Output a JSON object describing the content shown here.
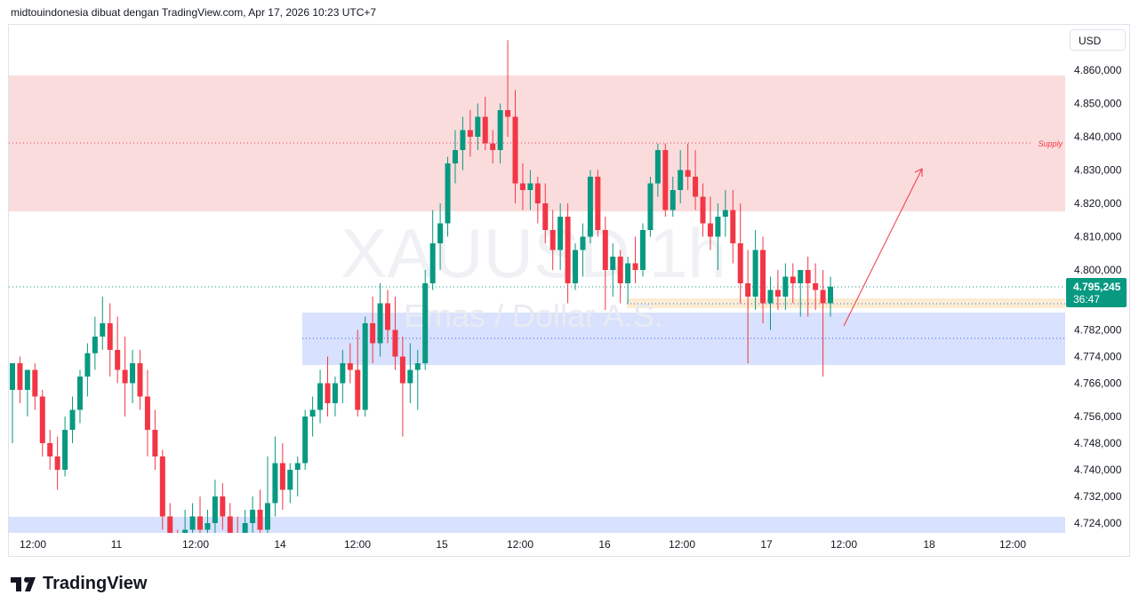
{
  "header": "midtouindonesia dibuat dengan TradingView.com, Apr 17, 2026 10:23 UTC+7",
  "currency": "USD",
  "watermark": {
    "symbol": "XAUUSD 1h",
    "name": "Emas / Dollar A.S."
  },
  "brand": "TradingView",
  "chart_data": {
    "type": "candlestick",
    "symbol": "XAUUSD",
    "interval": "1h",
    "colors": {
      "up": "#089981",
      "down": "#f23645",
      "supply": "#fbdcdd",
      "demand": "#d8e1fd",
      "pending": "#fdecd2"
    },
    "y_ticks": [
      "4.860,000",
      "4.850,000",
      "4.840,000",
      "4.830,000",
      "4.820,000",
      "4.810,000",
      "4.800,000",
      "4.782,000",
      "4.774,000",
      "4.766,000",
      "4.756,000",
      "4.748,000",
      "4.740,000",
      "4.732,000",
      "4.724,000"
    ],
    "y_tick_values": [
      4860,
      4850,
      4840,
      4830,
      4820,
      4810,
      4800,
      4782,
      4774,
      4766,
      4756,
      4748,
      4740,
      4732,
      4724
    ],
    "x_ticks": [
      "12:00",
      "11",
      "12:00",
      "14",
      "12:00",
      "15",
      "12:00",
      "16",
      "12:00",
      "17",
      "12:00",
      "18",
      "12:00"
    ],
    "last_price": "4.795,245",
    "countdown": "36:47",
    "last_price_value": 4795.245,
    "annotations": {
      "supply_label": "Supply",
      "supply_zone": [
        4818,
        4859
      ],
      "demand_zone": [
        4772,
        4788
      ],
      "demand_zone_low": [
        4719,
        4726
      ]
    },
    "candles": [
      [
        4764,
        4772,
        4748,
        4772
      ],
      [
        4772,
        4774,
        4760,
        4764
      ],
      [
        4764,
        4770,
        4756,
        4770
      ],
      [
        4770,
        4772,
        4758,
        4762
      ],
      [
        4762,
        4764,
        4744,
        4748
      ],
      [
        4748,
        4752,
        4740,
        4744
      ],
      [
        4744,
        4750,
        4734,
        4740
      ],
      [
        4740,
        4756,
        4738,
        4752
      ],
      [
        4752,
        4762,
        4748,
        4758
      ],
      [
        4758,
        4770,
        4754,
        4768
      ],
      [
        4768,
        4778,
        4762,
        4775
      ],
      [
        4775,
        4786,
        4770,
        4780
      ],
      [
        4780,
        4792,
        4776,
        4784
      ],
      [
        4784,
        4790,
        4768,
        4776
      ],
      [
        4776,
        4786,
        4766,
        4770
      ],
      [
        4770,
        4780,
        4756,
        4766
      ],
      [
        4766,
        4776,
        4760,
        4772
      ],
      [
        4772,
        4776,
        4758,
        4762
      ],
      [
        4762,
        4770,
        4744,
        4752
      ],
      [
        4752,
        4758,
        4740,
        4744
      ],
      [
        4744,
        4746,
        4722,
        4726
      ],
      [
        4726,
        4730,
        4712,
        4716
      ],
      [
        4716,
        4722,
        4708,
        4714
      ],
      [
        4714,
        4728,
        4710,
        4722
      ],
      [
        4722,
        4730,
        4716,
        4726
      ],
      [
        4726,
        4732,
        4718,
        4722
      ],
      [
        4722,
        4728,
        4714,
        4724
      ],
      [
        4724,
        4737,
        4720,
        4732
      ],
      [
        4732,
        4736,
        4722,
        4726
      ],
      [
        4726,
        4730,
        4716,
        4720
      ],
      [
        4720,
        4726,
        4712,
        4718
      ],
      [
        4718,
        4728,
        4714,
        4724
      ],
      [
        4724,
        4732,
        4718,
        4728
      ],
      [
        4728,
        4734,
        4716,
        4722
      ],
      [
        4722,
        4744,
        4718,
        4730
      ],
      [
        4730,
        4750,
        4726,
        4742
      ],
      [
        4742,
        4748,
        4728,
        4734
      ],
      [
        4734,
        4742,
        4730,
        4740
      ],
      [
        4740,
        4744,
        4732,
        4742
      ],
      [
        4742,
        4758,
        4740,
        4756
      ],
      [
        4756,
        4762,
        4750,
        4758
      ],
      [
        4758,
        4770,
        4754,
        4766
      ],
      [
        4766,
        4774,
        4756,
        4760
      ],
      [
        4760,
        4768,
        4756,
        4766
      ],
      [
        4766,
        4776,
        4760,
        4772
      ],
      [
        4772,
        4778,
        4766,
        4770
      ],
      [
        4770,
        4782,
        4756,
        4758
      ],
      [
        4758,
        4786,
        4756,
        4784
      ],
      [
        4784,
        4792,
        4772,
        4778
      ],
      [
        4778,
        4796,
        4774,
        4790
      ],
      [
        4790,
        4794,
        4778,
        4782
      ],
      [
        4782,
        4792,
        4770,
        4774
      ],
      [
        4774,
        4780,
        4750,
        4766
      ],
      [
        4766,
        4778,
        4760,
        4770
      ],
      [
        4770,
        4776,
        4758,
        4772
      ],
      [
        4772,
        4800,
        4770,
        4796
      ],
      [
        4796,
        4818,
        4794,
        4808
      ],
      [
        4808,
        4820,
        4800,
        4814
      ],
      [
        4814,
        4834,
        4810,
        4832
      ],
      [
        4832,
        4842,
        4826,
        4836
      ],
      [
        4836,
        4846,
        4830,
        4842
      ],
      [
        4842,
        4848,
        4834,
        4840
      ],
      [
        4840,
        4850,
        4836,
        4846
      ],
      [
        4846,
        4852,
        4836,
        4838
      ],
      [
        4838,
        4842,
        4832,
        4836
      ],
      [
        4836,
        4850,
        4832,
        4848
      ],
      [
        4848,
        4869,
        4840,
        4846
      ],
      [
        4846,
        4854,
        4820,
        4826
      ],
      [
        4826,
        4832,
        4818,
        4824
      ],
      [
        4824,
        4830,
        4818,
        4826
      ],
      [
        4826,
        4828,
        4814,
        4820
      ],
      [
        4820,
        4826,
        4808,
        4812
      ],
      [
        4812,
        4818,
        4800,
        4806
      ],
      [
        4806,
        4820,
        4800,
        4816
      ],
      [
        4816,
        4820,
        4790,
        4796
      ],
      [
        4796,
        4808,
        4794,
        4806
      ],
      [
        4806,
        4814,
        4798,
        4810
      ],
      [
        4810,
        4830,
        4808,
        4828
      ],
      [
        4828,
        4830,
        4810,
        4812
      ],
      [
        4812,
        4816,
        4788,
        4800
      ],
      [
        4800,
        4808,
        4792,
        4804
      ],
      [
        4804,
        4806,
        4790,
        4796
      ],
      [
        4796,
        4804,
        4790,
        4802
      ],
      [
        4802,
        4810,
        4796,
        4800
      ],
      [
        4800,
        4814,
        4798,
        4812
      ],
      [
        4812,
        4828,
        4810,
        4826
      ],
      [
        4826,
        4838,
        4822,
        4836
      ],
      [
        4836,
        4838,
        4816,
        4818
      ],
      [
        4818,
        4828,
        4816,
        4824
      ],
      [
        4824,
        4836,
        4820,
        4830
      ],
      [
        4830,
        4838,
        4824,
        4828
      ],
      [
        4828,
        4836,
        4818,
        4822
      ],
      [
        4822,
        4826,
        4810,
        4814
      ],
      [
        4814,
        4822,
        4806,
        4810
      ],
      [
        4810,
        4820,
        4800,
        4816
      ],
      [
        4816,
        4824,
        4810,
        4818
      ],
      [
        4818,
        4824,
        4802,
        4808
      ],
      [
        4808,
        4820,
        4790,
        4796
      ],
      [
        4796,
        4806,
        4772,
        4792
      ],
      [
        4792,
        4812,
        4788,
        4806
      ],
      [
        4806,
        4810,
        4784,
        4790
      ],
      [
        4790,
        4798,
        4782,
        4794
      ],
      [
        4794,
        4800,
        4788,
        4792
      ],
      [
        4792,
        4802,
        4788,
        4798
      ],
      [
        4798,
        4802,
        4790,
        4796
      ],
      [
        4796,
        4800,
        4786,
        4800
      ],
      [
        4800,
        4804,
        4786,
        4796
      ],
      [
        4796,
        4802,
        4788,
        4794
      ],
      [
        4794,
        4800,
        4768,
        4790
      ],
      [
        4790,
        4798,
        4786,
        4795
      ]
    ]
  }
}
